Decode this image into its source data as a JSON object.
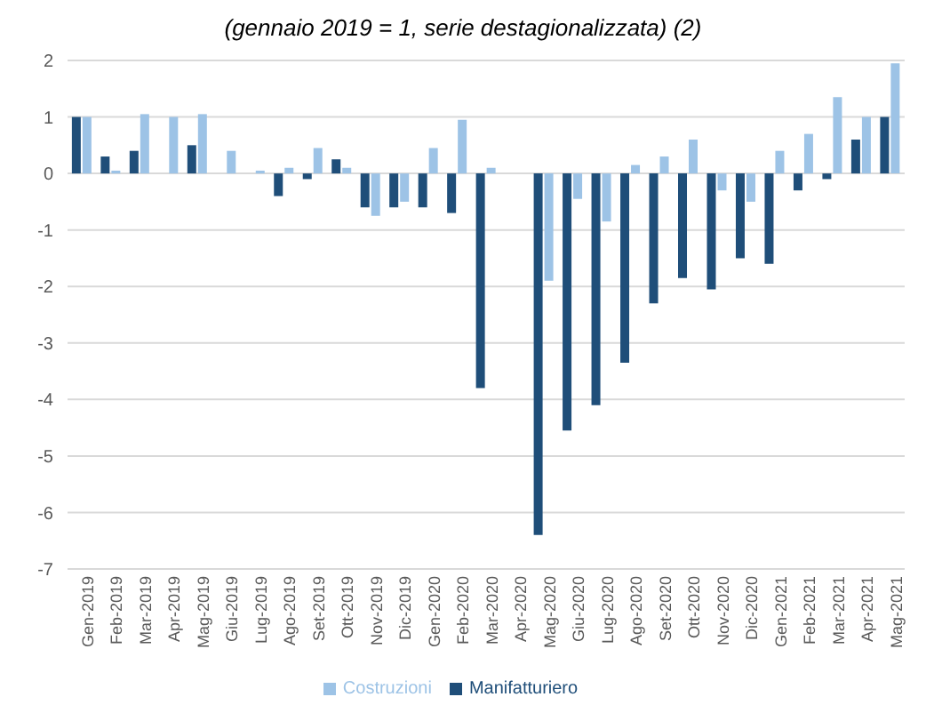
{
  "chart_data": {
    "type": "bar",
    "title": "(gennaio 2019 = 1, serie destagionalizzata) (2)",
    "categories": [
      "Gen-2019",
      "Feb-2019",
      "Mar-2019",
      "Apr-2019",
      "Mag-2019",
      "Giu-2019",
      "Lug-2019",
      "Ago-2019",
      "Set-2019",
      "Ott-2019",
      "Nov-2019",
      "Dic-2019",
      "Gen-2020",
      "Feb-2020",
      "Mar-2020",
      "Apr-2020",
      "Mag-2020",
      "Giu-2020",
      "Lug-2020",
      "Ago-2020",
      "Set-2020",
      "Ott-2020",
      "Nov-2020",
      "Dic-2020",
      "Gen-2021",
      "Feb-2021",
      "Mar-2021",
      "Apr-2021",
      "Mag-2021"
    ],
    "series": [
      {
        "name": "Manifatturiero",
        "color": "#1f4e79",
        "values": [
          1.0,
          0.3,
          0.4,
          0,
          0.5,
          0,
          0,
          -0.4,
          -0.1,
          0.25,
          -0.6,
          -0.6,
          -0.6,
          -0.7,
          -3.8,
          null,
          -6.4,
          -4.55,
          -4.1,
          -3.35,
          -2.3,
          -1.85,
          -2.05,
          -1.5,
          -1.6,
          -0.3,
          -0.1,
          0.6,
          1.0
        ]
      },
      {
        "name": "Costruzioni",
        "color": "#9dc3e6",
        "values": [
          1.0,
          0.05,
          1.05,
          1.0,
          1.05,
          0.4,
          0.05,
          0.1,
          0.45,
          0.1,
          -0.75,
          -0.5,
          0.45,
          0.95,
          0.1,
          null,
          -1.9,
          -0.45,
          -0.85,
          0.15,
          0.3,
          0.6,
          -0.3,
          -0.5,
          0.4,
          0.7,
          1.35,
          1.0,
          1.95
        ]
      }
    ],
    "ylim": [
      -7,
      2
    ],
    "yticks": [
      -7,
      -6,
      -5,
      -4,
      -3,
      -2,
      -1,
      0,
      1,
      2
    ],
    "grid": "y",
    "legend": "bottom"
  }
}
